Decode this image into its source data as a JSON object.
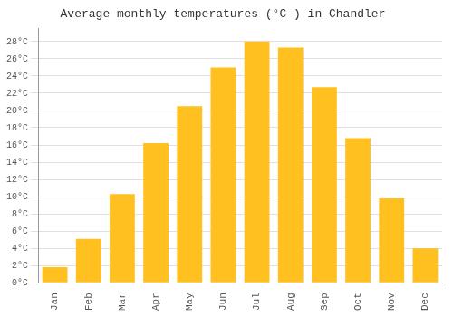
{
  "chart_data": {
    "type": "bar",
    "title": "Average monthly temperatures (°C ) in Chandler",
    "categories": [
      "Jan",
      "Feb",
      "Mar",
      "Apr",
      "May",
      "Jun",
      "Jul",
      "Aug",
      "Sep",
      "Oct",
      "Nov",
      "Dec"
    ],
    "values": [
      1.8,
      5.1,
      10.3,
      16.2,
      20.5,
      25.0,
      28.0,
      27.3,
      22.7,
      16.8,
      9.8,
      4.0
    ],
    "color": "#FFC020",
    "ylim": [
      0,
      29.5
    ],
    "yticks": [
      {
        "value": 0,
        "label": "0°C"
      },
      {
        "value": 2,
        "label": "2°C"
      },
      {
        "value": 4,
        "label": "4°C"
      },
      {
        "value": 6,
        "label": "6°C"
      },
      {
        "value": 8,
        "label": "8°C"
      },
      {
        "value": 10,
        "label": "10°C"
      },
      {
        "value": 12,
        "label": "12°C"
      },
      {
        "value": 14,
        "label": "14°C"
      },
      {
        "value": 16,
        "label": "16°C"
      },
      {
        "value": 18,
        "label": "18°C"
      },
      {
        "value": 20,
        "label": "20°C"
      },
      {
        "value": 22,
        "label": "22°C"
      },
      {
        "value": 24,
        "label": "24°C"
      },
      {
        "value": 26,
        "label": "26°C"
      },
      {
        "value": 28,
        "label": "28°C"
      }
    ],
    "grid": true
  }
}
